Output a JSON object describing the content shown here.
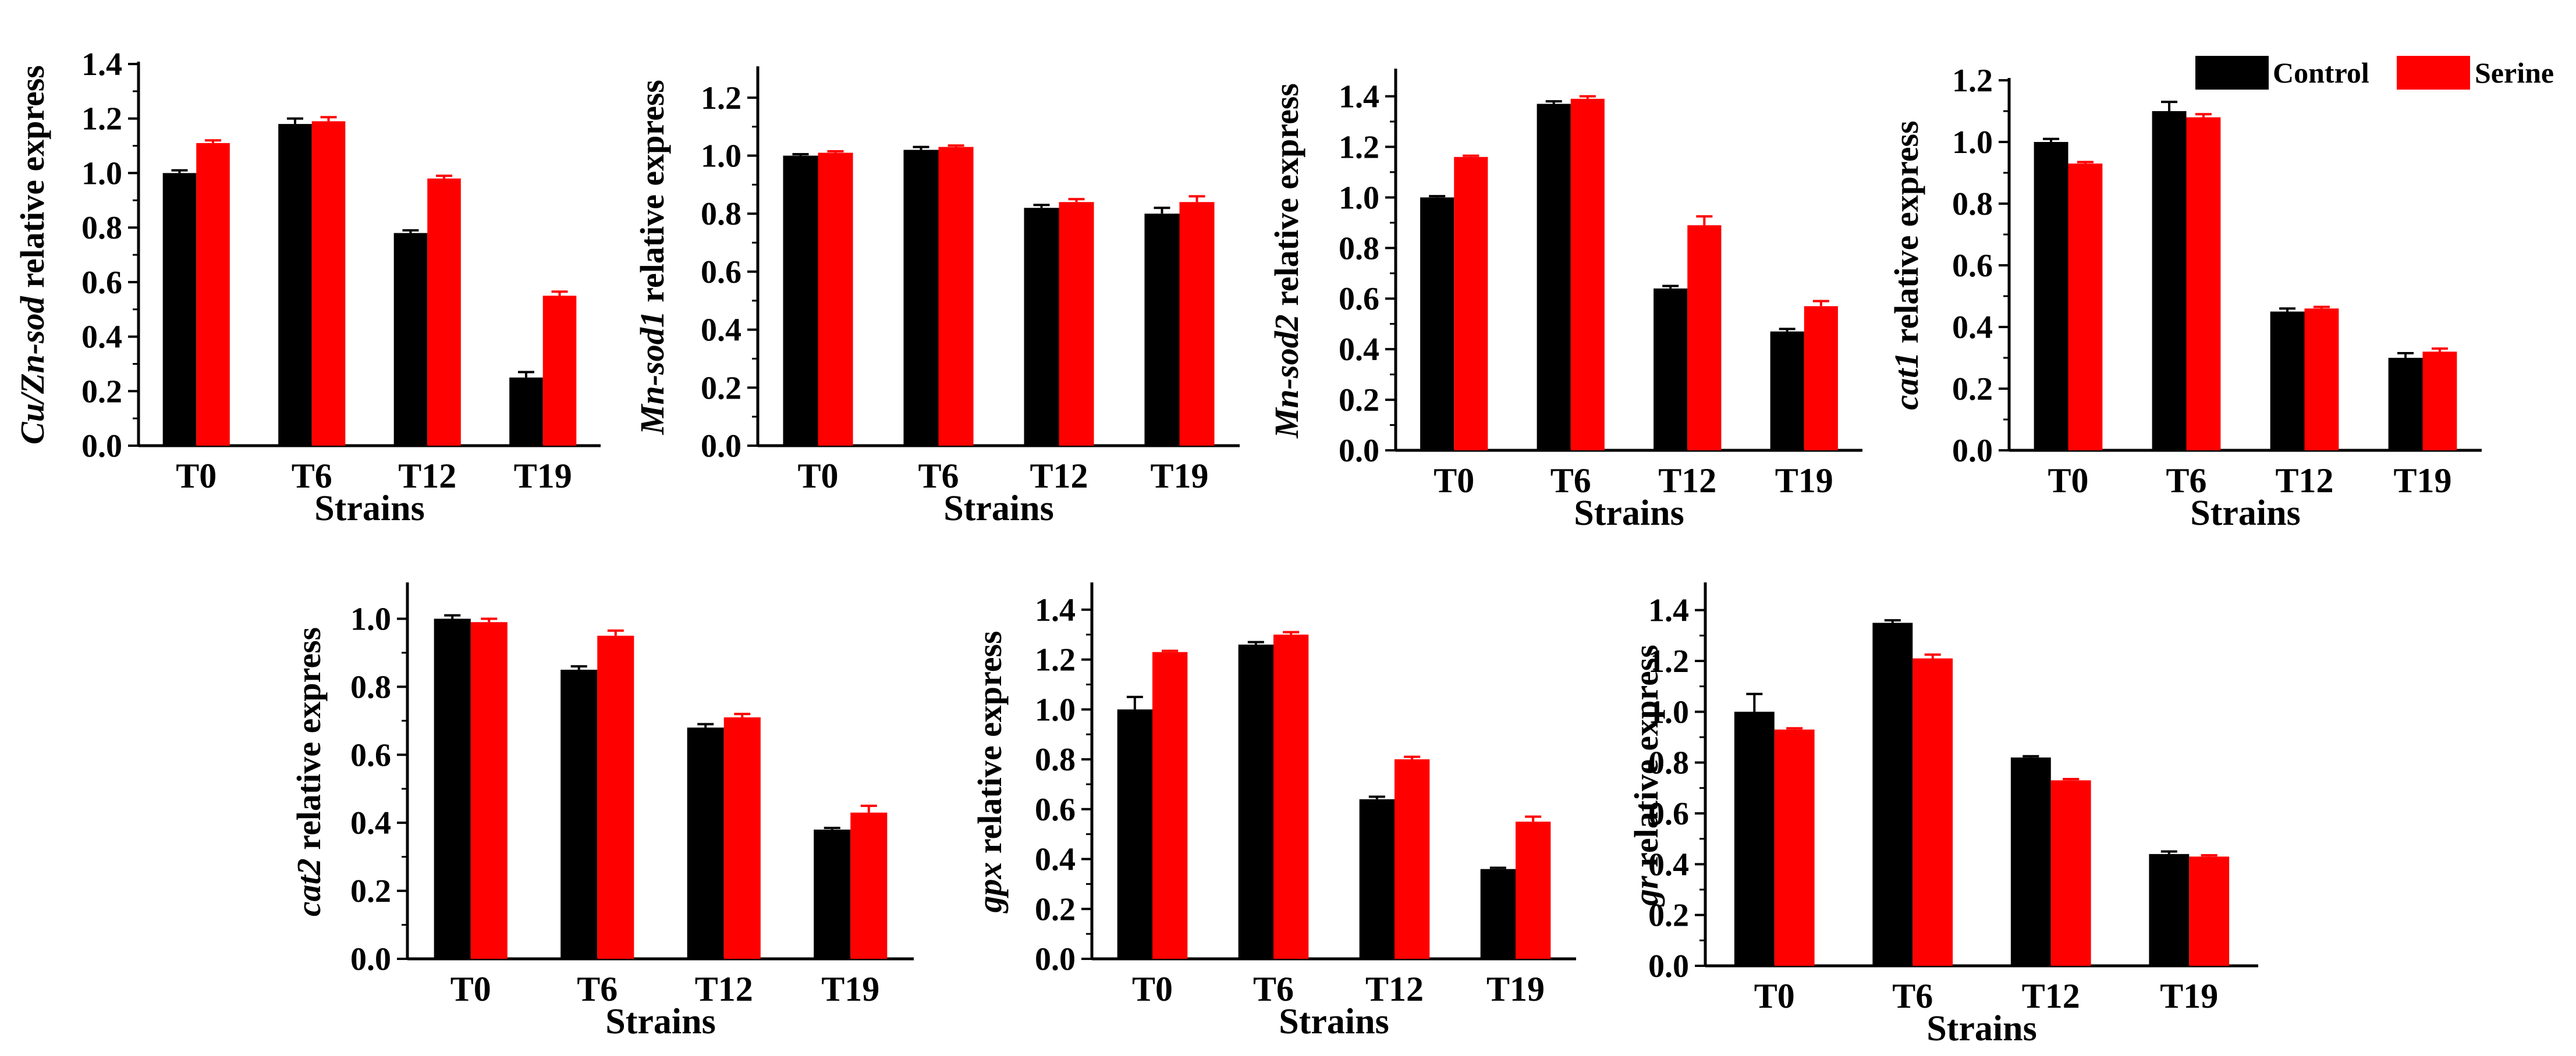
{
  "colors": {
    "control": "#000000",
    "serine": "#ff0000",
    "axis": "#000000"
  },
  "legend": {
    "control": "Control",
    "serine": "Serine"
  },
  "chart_data": [
    {
      "type": "bar",
      "categories": [
        "T0",
        "T6",
        "T12",
        "T19"
      ],
      "series": [
        {
          "name": "Control",
          "values": [
            1.0,
            1.18,
            0.78,
            0.25
          ],
          "errors": [
            0.01,
            0.02,
            0.01,
            0.02
          ]
        },
        {
          "name": "Serine",
          "values": [
            1.11,
            1.19,
            0.98,
            0.55
          ],
          "errors": [
            0.01,
            0.015,
            0.01,
            0.015
          ]
        }
      ],
      "ylabel_italic": "Cu/Zn-sod",
      "ylabel_rest": " relative express",
      "xlabel": "Strains",
      "ylim": [
        0,
        1.4
      ],
      "ticks": [
        "0.0",
        "0.2",
        "0.4",
        "0.6",
        "0.8",
        "1.0",
        "1.2",
        "1.4"
      ]
    },
    {
      "type": "bar",
      "categories": [
        "T0",
        "T6",
        "T12",
        "T19"
      ],
      "series": [
        {
          "name": "Control",
          "values": [
            1.0,
            1.02,
            0.82,
            0.8
          ],
          "errors": [
            0.005,
            0.01,
            0.01,
            0.02
          ]
        },
        {
          "name": "Serine",
          "values": [
            1.01,
            1.03,
            0.84,
            0.84
          ],
          "errors": [
            0.005,
            0.005,
            0.01,
            0.02
          ]
        }
      ],
      "ylabel_italic": "Mn-sod1",
      "ylabel_rest": " relative express",
      "xlabel": "Strains",
      "ylim": [
        0,
        1.3
      ],
      "ticks": [
        "0.0",
        "0.2",
        "0.4",
        "0.6",
        "0.8",
        "1.0",
        "1.2"
      ]
    },
    {
      "type": "bar",
      "categories": [
        "T0",
        "T6",
        "T12",
        "T19"
      ],
      "series": [
        {
          "name": "Control",
          "values": [
            1.0,
            1.37,
            0.64,
            0.47
          ],
          "errors": [
            0.005,
            0.01,
            0.01,
            0.01
          ]
        },
        {
          "name": "Serine",
          "values": [
            1.16,
            1.39,
            0.89,
            0.57
          ],
          "errors": [
            0.005,
            0.01,
            0.035,
            0.02
          ]
        }
      ],
      "ylabel_italic": "Mn-sod2",
      "ylabel_rest": " relative express",
      "xlabel": "Strains",
      "ylim": [
        0,
        1.5
      ],
      "ticks": [
        "0.0",
        "0.2",
        "0.4",
        "0.6",
        "0.8",
        "1.0",
        "1.2",
        "1.4"
      ]
    },
    {
      "type": "bar",
      "categories": [
        "T0",
        "T6",
        "T12",
        "T19"
      ],
      "series": [
        {
          "name": "Control",
          "values": [
            1.0,
            1.1,
            0.45,
            0.3
          ],
          "errors": [
            0.01,
            0.03,
            0.01,
            0.015
          ]
        },
        {
          "name": "Serine",
          "values": [
            0.93,
            1.08,
            0.46,
            0.32
          ],
          "errors": [
            0.005,
            0.01,
            0.005,
            0.01
          ]
        }
      ],
      "ylabel_italic": "cat1",
      "ylabel_rest": " relative express",
      "xlabel": "Strains",
      "ylim": [
        0,
        1.2
      ],
      "ticks": [
        "0.0",
        "0.2",
        "0.4",
        "0.6",
        "0.8",
        "1.0",
        "1.2"
      ]
    },
    {
      "type": "bar",
      "categories": [
        "T0",
        "T6",
        "T12",
        "T19"
      ],
      "series": [
        {
          "name": "Control",
          "values": [
            1.0,
            0.85,
            0.68,
            0.38
          ],
          "errors": [
            0.01,
            0.01,
            0.01,
            0.005
          ]
        },
        {
          "name": "Serine",
          "values": [
            0.99,
            0.95,
            0.71,
            0.43
          ],
          "errors": [
            0.01,
            0.015,
            0.01,
            0.02
          ]
        }
      ],
      "ylabel_italic": "cat2",
      "ylabel_rest": " relative express",
      "xlabel": "Strains",
      "ylim": [
        0,
        1.1
      ],
      "ticks": [
        "0.0",
        "0.2",
        "0.4",
        "0.6",
        "0.8",
        "1.0"
      ]
    },
    {
      "type": "bar",
      "categories": [
        "T0",
        "T6",
        "T12",
        "T19"
      ],
      "series": [
        {
          "name": "Control",
          "values": [
            1.0,
            1.26,
            0.64,
            0.36
          ],
          "errors": [
            0.05,
            0.01,
            0.01,
            0.005
          ]
        },
        {
          "name": "Serine",
          "values": [
            1.23,
            1.3,
            0.8,
            0.55
          ],
          "errors": [
            0.005,
            0.01,
            0.01,
            0.02
          ]
        }
      ],
      "ylabel_italic": "gpx",
      "ylabel_rest": " relative express",
      "xlabel": "Strains",
      "ylim": [
        0,
        1.5
      ],
      "ticks": [
        "0.0",
        "0.2",
        "0.4",
        "0.6",
        "0.8",
        "1.0",
        "1.2",
        "1.4"
      ]
    },
    {
      "type": "bar",
      "categories": [
        "T0",
        "T6",
        "T12",
        "T19"
      ],
      "series": [
        {
          "name": "Control",
          "values": [
            1.0,
            1.35,
            0.82,
            0.44
          ],
          "errors": [
            0.07,
            0.01,
            0.005,
            0.01
          ]
        },
        {
          "name": "Serine",
          "values": [
            0.93,
            1.21,
            0.73,
            0.43
          ],
          "errors": [
            0.005,
            0.015,
            0.005,
            0.005
          ]
        }
      ],
      "ylabel_italic": "gr",
      "ylabel_rest": " relative express",
      "xlabel": "Strains",
      "ylim": [
        0,
        1.5
      ],
      "ticks": [
        "0.0",
        "0.2",
        "0.4",
        "0.6",
        "0.8",
        "1.0",
        "1.2",
        "1.4"
      ]
    }
  ]
}
